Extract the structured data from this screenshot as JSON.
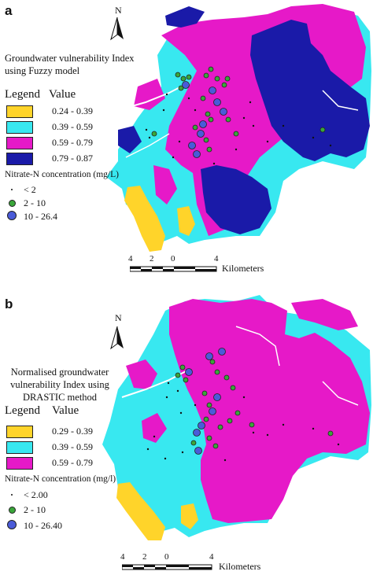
{
  "colors": {
    "class_yellow": "#ffd42a",
    "class_cyan": "#38e8f0",
    "class_magenta": "#e619c8",
    "class_navy": "#1a1aa8",
    "point_green": "#3aa63a",
    "point_blue": "#4a5bd8"
  },
  "icons": [
    "north-arrow-icon",
    "scale-bar-icon"
  ],
  "panel_a": {
    "letter": "a",
    "north": "N",
    "title_lines": [
      "Groundwater vulnerability Index",
      "using Fuzzy model"
    ],
    "legend_heading": "Legend",
    "value_heading": "Value",
    "classes": [
      {
        "range": "0.24 - 0.39",
        "color": "#ffd42a"
      },
      {
        "range": "0.39 - 0.59",
        "color": "#38e8f0"
      },
      {
        "range": "0.59 - 0.79",
        "color": "#e619c8"
      },
      {
        "range": "0.79 - 0.87",
        "color": "#1a1aa8"
      }
    ],
    "nitrate_heading": "Nitrate-N concentration (mg/L)",
    "nitrate_classes": [
      {
        "label": "< 2",
        "color": "#111111"
      },
      {
        "label": "2 - 10",
        "color": "#3aa63a"
      },
      {
        "label": "10 - 26.4",
        "color": "#4a5bd8"
      }
    ],
    "scale_ticks": [
      "4",
      "2",
      "0",
      "4"
    ],
    "scale_unit": "Kilometers"
  },
  "panel_b": {
    "letter": "b",
    "north": "N",
    "title_lines": [
      "Normalised groundwater",
      "vulnerability  Index  using",
      "DRASTIC method"
    ],
    "legend_heading": "Legend",
    "value_heading": "Value",
    "classes": [
      {
        "range": "0.29 - 0.39",
        "color": "#ffd42a"
      },
      {
        "range": "0.39 - 0.59",
        "color": "#38e8f0"
      },
      {
        "range": "0.59 - 0.79",
        "color": "#e619c8"
      }
    ],
    "nitrate_heading": "Nitrate-N concentration (mg/l)",
    "nitrate_classes": [
      {
        "label": "< 2.00",
        "color": "#111111"
      },
      {
        "label": "2 - 10",
        "color": "#3aa63a"
      },
      {
        "label": "10 - 26.40",
        "color": "#4a5bd8"
      }
    ],
    "scale_ticks": [
      "4",
      "2",
      "0",
      "4"
    ],
    "scale_unit": "Kilometers"
  }
}
